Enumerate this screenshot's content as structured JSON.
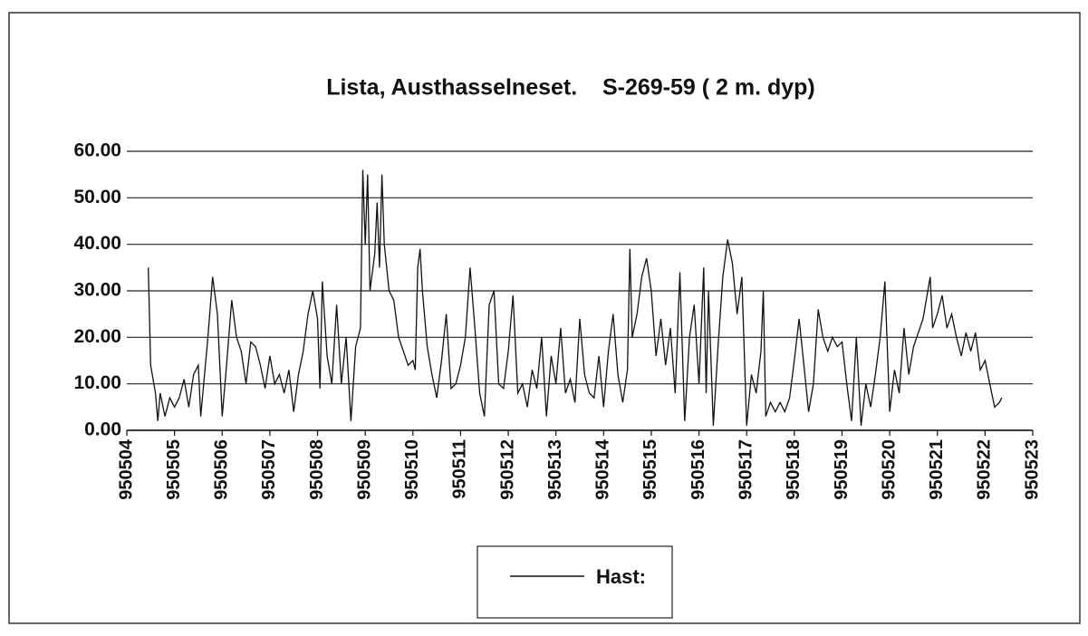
{
  "chart_data": {
    "type": "line",
    "title": "Lista, Austhasselneset.    S-269-59 ( 2 m. dyp)",
    "x": [
      950504.45,
      950504.5,
      950504.6,
      950504.65,
      950504.7,
      950504.8,
      950504.9,
      950505.0,
      950505.1,
      950505.2,
      950505.3,
      950505.4,
      950505.5,
      950505.55,
      950505.7,
      950505.8,
      950505.9,
      950506.0,
      950506.1,
      950506.2,
      950506.3,
      950506.4,
      950506.5,
      950506.6,
      950506.7,
      950506.8,
      950506.9,
      950507.0,
      950507.1,
      950507.2,
      950507.3,
      950507.4,
      950507.5,
      950507.6,
      950507.7,
      950507.8,
      950507.9,
      950508.0,
      950508.05,
      950508.1,
      950508.2,
      950508.3,
      950508.4,
      950508.5,
      950508.6,
      950508.7,
      950508.8,
      950508.9,
      950508.95,
      950509.0,
      950509.05,
      950509.1,
      950509.2,
      950509.25,
      950509.3,
      950509.35,
      950509.4,
      950509.5,
      950509.6,
      950509.7,
      950509.8,
      950509.9,
      950510.0,
      950510.05,
      950510.1,
      950510.15,
      950510.2,
      950510.3,
      950510.4,
      950510.5,
      950510.6,
      950510.7,
      950510.8,
      950510.9,
      950511.0,
      950511.1,
      950511.2,
      950511.3,
      950511.4,
      950511.5,
      950511.6,
      950511.7,
      950511.8,
      950511.9,
      950512.0,
      950512.1,
      950512.2,
      950512.3,
      950512.4,
      950512.5,
      950512.6,
      950512.7,
      950512.8,
      950512.9,
      950513.0,
      950513.1,
      950513.2,
      950513.3,
      950513.4,
      950513.5,
      950513.6,
      950513.7,
      950513.8,
      950513.9,
      950514.0,
      950514.1,
      950514.2,
      950514.3,
      950514.4,
      950514.5,
      950514.55,
      950514.6,
      950514.7,
      950514.8,
      950514.9,
      950515.0,
      950515.1,
      950515.2,
      950515.3,
      950515.4,
      950515.5,
      950515.6,
      950515.7,
      950515.8,
      950515.9,
      950516.0,
      950516.1,
      950516.15,
      950516.2,
      950516.3,
      950516.4,
      950516.5,
      950516.6,
      950516.7,
      950516.8,
      950516.9,
      950517.0,
      950517.1,
      950517.2,
      950517.3,
      950517.35,
      950517.4,
      950517.5,
      950517.6,
      950517.7,
      950517.8,
      950517.9,
      950518.0,
      950518.1,
      950518.2,
      950518.3,
      950518.4,
      950518.5,
      950518.6,
      950518.7,
      950518.8,
      950518.9,
      950519.0,
      950519.1,
      950519.2,
      950519.3,
      950519.4,
      950519.5,
      950519.6,
      950519.7,
      950519.8,
      950519.9,
      950520.0,
      950520.1,
      950520.2,
      950520.3,
      950520.4,
      950520.5,
      950520.6,
      950520.7,
      950520.85,
      950520.9,
      950521.0,
      950521.1,
      950521.2,
      950521.3,
      950521.4,
      950521.5,
      950521.6,
      950521.7,
      950521.8,
      950521.9,
      950522.0,
      950522.1,
      950522.2,
      950522.3,
      950522.35
    ],
    "series": [
      {
        "name": "Hast:",
        "color": "#111111",
        "values": [
          35,
          14,
          8,
          2,
          8,
          3,
          7,
          5,
          7,
          11,
          5,
          12,
          14,
          3,
          20,
          33,
          25,
          3,
          15,
          28,
          20,
          17,
          10,
          19,
          18,
          14,
          9,
          16,
          10,
          12,
          8,
          13,
          4,
          12,
          17,
          25,
          30,
          24,
          9,
          32,
          16,
          10,
          27,
          10,
          20,
          2,
          18,
          22,
          56,
          40,
          55,
          30,
          38,
          49,
          35,
          55,
          40,
          30,
          28,
          20,
          17,
          14,
          15,
          13,
          35,
          39,
          30,
          18,
          12,
          7,
          15,
          25,
          9,
          10,
          14,
          20,
          35,
          22,
          8,
          3,
          27,
          30,
          10,
          9,
          17,
          29,
          8,
          10,
          5,
          13,
          9,
          20,
          3,
          16,
          10,
          22,
          8,
          11,
          6,
          24,
          12,
          8,
          7,
          16,
          5,
          17,
          25,
          12,
          6,
          13,
          39,
          20,
          25,
          33,
          37,
          30,
          16,
          24,
          14,
          22,
          8,
          34,
          2,
          20,
          27,
          10,
          35,
          8,
          30,
          1,
          18,
          33,
          41,
          36,
          25,
          33,
          1,
          12,
          8,
          17,
          30,
          3,
          6,
          4,
          6,
          4,
          7,
          15,
          24,
          14,
          4,
          10,
          26,
          20,
          17,
          20,
          18,
          19,
          10,
          2,
          20,
          1,
          10,
          5,
          12,
          20,
          32,
          4,
          13,
          8,
          22,
          12,
          18,
          21,
          24,
          33,
          22,
          25,
          29,
          22,
          25,
          20,
          16,
          21,
          17,
          21,
          13,
          15,
          10,
          5,
          6,
          7
        ]
      }
    ],
    "xlim": [
      950504,
      950523
    ],
    "xticks": [
      950504,
      950505,
      950506,
      950507,
      950508,
      950509,
      950510,
      950511,
      950512,
      950513,
      950514,
      950515,
      950516,
      950517,
      950518,
      950519,
      950520,
      950521,
      950522,
      950523
    ],
    "ylim": [
      0,
      60
    ],
    "yticks": [
      {
        "value": 0,
        "label": "0.00"
      },
      {
        "value": 10,
        "label": "10.00"
      },
      {
        "value": 20,
        "label": "20.00"
      },
      {
        "value": 30,
        "label": "30.00"
      },
      {
        "value": 40,
        "label": "40.00"
      },
      {
        "value": 50,
        "label": "50.00"
      },
      {
        "value": 60,
        "label": "60.00"
      }
    ],
    "grid": true,
    "legend": "bottom"
  }
}
